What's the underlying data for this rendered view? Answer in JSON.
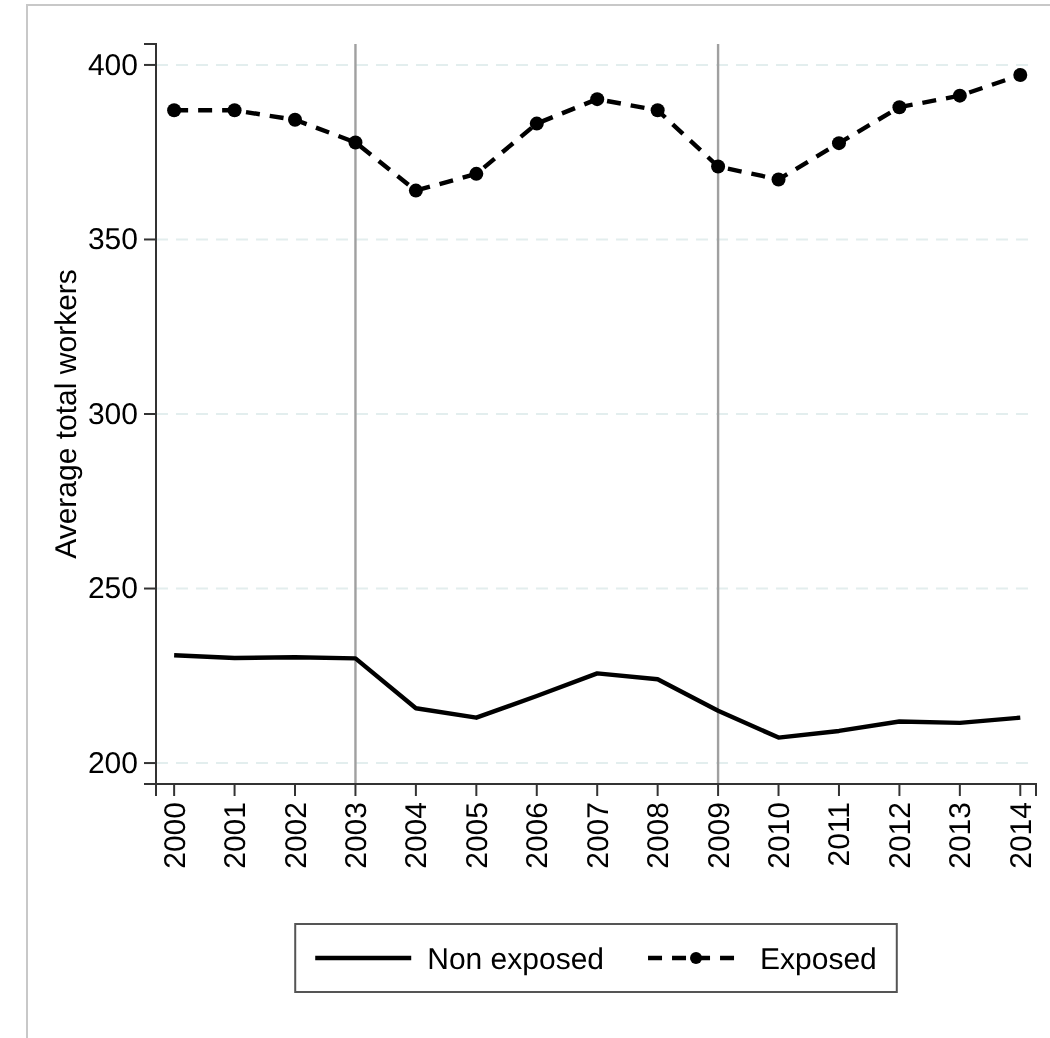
{
  "chart_data": {
    "type": "line",
    "ylabel": "Average total workers",
    "x": [
      2000,
      2001,
      2002,
      2003,
      2004,
      2005,
      2006,
      2007,
      2008,
      2009,
      2010,
      2011,
      2012,
      2013,
      2014
    ],
    "xlim": [
      1999.7,
      2014.26
    ],
    "xticks": [
      2000,
      2001,
      2002,
      2003,
      2004,
      2005,
      2006,
      2007,
      2008,
      2009,
      2010,
      2011,
      2012,
      2013,
      2014
    ],
    "ylim": [
      194,
      406
    ],
    "yticks": [
      200,
      250,
      300,
      350,
      400
    ],
    "grid": "y",
    "legend": "bottom",
    "ref_lines": [
      {
        "axis": "x",
        "value": 2003,
        "color": "#a0a0a0"
      },
      {
        "axis": "x",
        "value": 2009,
        "color": "#a0a0a0"
      }
    ],
    "series": [
      {
        "name": "Non exposed",
        "color": "#000000",
        "line_style": "solid",
        "marker": "none",
        "values": [
          230.9,
          230.1,
          230.3,
          230,
          215.7,
          213,
          219.2,
          225.7,
          224,
          215,
          207.3,
          209.2,
          211.9,
          211.5,
          213
        ]
      },
      {
        "name": "Exposed",
        "color": "#000000",
        "line_style": "dashed",
        "marker": "circle",
        "values": [
          387,
          387,
          384.3,
          377.8,
          364,
          368.8,
          383.2,
          390.2,
          387,
          370.9,
          367.2,
          377.6,
          387.9,
          391.2,
          397.1
        ]
      }
    ]
  }
}
